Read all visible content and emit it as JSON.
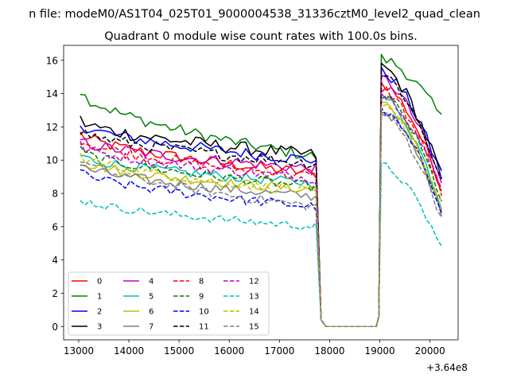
{
  "chart_data": {
    "type": "line",
    "suptitle": "n file: modeM0/AS1T04_025T01_9000004538_31336cztM0_level2_quad_clean",
    "title": "Quadrant 0 module wise count rates with 100.0s bins.",
    "xlabel": "",
    "ylabel": "",
    "x_offset_label": "+3.64e8",
    "xlim": [
      12700,
      20560
    ],
    "ylim": [
      -0.8,
      16.9
    ],
    "x_ticks": [
      13000,
      14000,
      15000,
      16000,
      17000,
      18000,
      19000,
      20000
    ],
    "y_ticks": [
      0,
      2,
      4,
      6,
      8,
      10,
      12,
      14,
      16
    ],
    "x_tick_labels": [
      "13000",
      "14000",
      "15000",
      "16000",
      "17000",
      "18000",
      "19000",
      "20000"
    ],
    "y_tick_labels": [
      "0",
      "2",
      "4",
      "6",
      "8",
      "10",
      "12",
      "14",
      "16"
    ],
    "legend_position": "lower-left",
    "legend_columns": 4,
    "series": [
      {
        "name": "0",
        "color": "#ff0000",
        "dash": "solid",
        "seg1_start": 11.6,
        "seg1_end": 9.2,
        "seg2_start": 14.6,
        "seg2_end": 8.3,
        "amp": 0.35
      },
      {
        "name": "1",
        "color": "#008000",
        "dash": "solid",
        "seg1_start": 14.2,
        "seg1_end": 10.2,
        "seg2_start": 16.1,
        "seg2_end": 12.5,
        "amp": 0.35
      },
      {
        "name": "2",
        "color": "#0000ff",
        "dash": "solid",
        "seg1_start": 12.2,
        "seg1_end": 10.0,
        "seg2_start": 15.3,
        "seg2_end": 9.0,
        "amp": 0.35
      },
      {
        "name": "3",
        "color": "#000000",
        "dash": "solid",
        "seg1_start": 12.4,
        "seg1_end": 10.3,
        "seg2_start": 15.6,
        "seg2_end": 9.0,
        "amp": 0.4
      },
      {
        "name": "4",
        "color": "#bf00bf",
        "dash": "solid",
        "seg1_start": 11.2,
        "seg1_end": 9.5,
        "seg2_start": 14.9,
        "seg2_end": 8.6,
        "amp": 0.35
      },
      {
        "name": "5",
        "color": "#00bfbf",
        "dash": "solid",
        "seg1_start": 10.3,
        "seg1_end": 8.6,
        "seg2_start": 13.8,
        "seg2_end": 7.2,
        "amp": 0.3
      },
      {
        "name": "6",
        "color": "#bfbf00",
        "dash": "solid",
        "seg1_start": 10.0,
        "seg1_end": 8.2,
        "seg2_start": 13.5,
        "seg2_end": 7.0,
        "amp": 0.3
      },
      {
        "name": "7",
        "color": "#808080",
        "dash": "solid",
        "seg1_start": 9.7,
        "seg1_end": 7.8,
        "seg2_start": 13.0,
        "seg2_end": 6.8,
        "amp": 0.3
      },
      {
        "name": "8",
        "color": "#ff0000",
        "dash": "dashed",
        "seg1_start": 11.3,
        "seg1_end": 9.0,
        "seg2_start": 14.3,
        "seg2_end": 8.0,
        "amp": 0.35
      },
      {
        "name": "9",
        "color": "#008000",
        "dash": "dashed",
        "seg1_start": 10.6,
        "seg1_end": 8.4,
        "seg2_start": 13.9,
        "seg2_end": 7.6,
        "amp": 0.3
      },
      {
        "name": "10",
        "color": "#0000ff",
        "dash": "dashed",
        "seg1_start": 9.3,
        "seg1_end": 7.2,
        "seg2_start": 12.9,
        "seg2_end": 7.1,
        "amp": 0.3
      },
      {
        "name": "11",
        "color": "#000000",
        "dash": "dashed",
        "seg1_start": 11.8,
        "seg1_end": 9.8,
        "seg2_start": 15.2,
        "seg2_end": 8.8,
        "amp": 0.35
      },
      {
        "name": "12",
        "color": "#bf00bf",
        "dash": "dashed",
        "seg1_start": 10.9,
        "seg1_end": 8.9,
        "seg2_start": 14.0,
        "seg2_end": 8.2,
        "amp": 0.3
      },
      {
        "name": "13",
        "color": "#00bfbf",
        "dash": "dashed",
        "seg1_start": 7.7,
        "seg1_end": 6.0,
        "seg2_start": 9.7,
        "seg2_end": 4.7,
        "amp": 0.25
      },
      {
        "name": "14",
        "color": "#bfbf00",
        "dash": "dashed",
        "seg1_start": 10.3,
        "seg1_end": 8.1,
        "seg2_start": 13.2,
        "seg2_end": 7.3,
        "amp": 0.3
      },
      {
        "name": "15",
        "color": "#808080",
        "dash": "dashed",
        "seg1_start": 10.1,
        "seg1_end": 7.2,
        "seg2_start": 12.8,
        "seg2_end": 6.5,
        "amp": 0.3
      }
    ],
    "segments": {
      "active1_start": 13030,
      "active1_end": 17730,
      "gap_start": 17930,
      "gap_end": 18930,
      "active2_start": 19030,
      "active2_end": 20230,
      "step": 100
    }
  }
}
